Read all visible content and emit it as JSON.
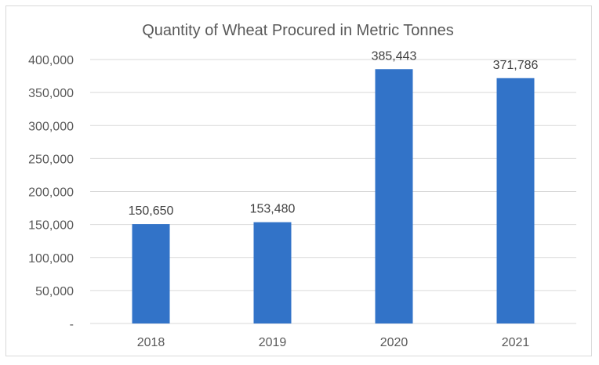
{
  "chart_data": {
    "type": "bar",
    "title": "Quantity of Wheat Procured in Metric Tonnes",
    "xlabel": "",
    "ylabel": "",
    "categories": [
      "2018",
      "2019",
      "2020",
      "2021"
    ],
    "values": [
      150650,
      153480,
      385443,
      371786
    ],
    "data_labels": [
      "150,650",
      "153,480",
      "385,443",
      "371,786"
    ],
    "ylim": [
      0,
      400000
    ],
    "y_ticks": [
      0,
      50000,
      100000,
      150000,
      200000,
      250000,
      300000,
      350000,
      400000
    ],
    "y_tick_labels": [
      "-",
      "50,000",
      "100,000",
      "150,000",
      "200,000",
      "250,000",
      "300,000",
      "350,000",
      "400,000"
    ],
    "grid": true,
    "legend": "none",
    "colors": {
      "bar": "#3273c8",
      "grid": "#d9d9d9",
      "text": "#595959",
      "data_label": "#404040",
      "border": "#d9d9d9"
    }
  }
}
